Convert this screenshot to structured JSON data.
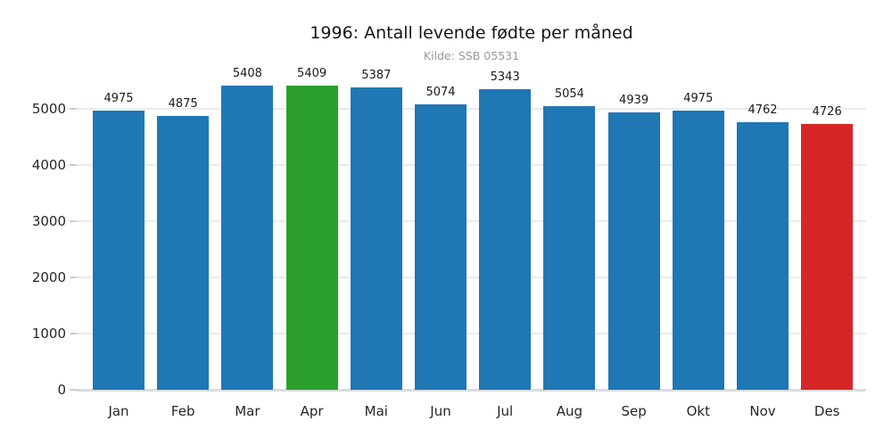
{
  "chart": {
    "title": "1996: Antall levende fødte per måned",
    "subtitle": "Kilde: SSB 05531"
  },
  "chart_data": {
    "type": "bar",
    "title": "1996: Antall levende fødte per måned",
    "subtitle": "Kilde: SSB 05531",
    "categories": [
      "Jan",
      "Feb",
      "Mar",
      "Apr",
      "Mai",
      "Jun",
      "Jul",
      "Aug",
      "Sep",
      "Okt",
      "Nov",
      "Des"
    ],
    "values": [
      4975,
      4875,
      5408,
      5409,
      5387,
      5074,
      5343,
      5054,
      4939,
      4975,
      4762,
      4726
    ],
    "bar_colors": [
      "#1f77b4",
      "#1f77b4",
      "#1f77b4",
      "#2ca02c",
      "#1f77b4",
      "#1f77b4",
      "#1f77b4",
      "#1f77b4",
      "#1f77b4",
      "#1f77b4",
      "#1f77b4",
      "#d62728"
    ],
    "colors": {
      "default_bar": "#1f77b4",
      "max_bar": "#2ca02c",
      "min_bar": "#d62728",
      "gridline": "#ebebeb",
      "subtitle_text": "#999999"
    },
    "value_labels": true,
    "xlabel": "",
    "ylabel": "",
    "yticks": [
      0,
      1000,
      2000,
      3000,
      4000,
      5000
    ],
    "ylim": [
      0,
      5600
    ],
    "grid": "horizontal",
    "legend": "none"
  }
}
